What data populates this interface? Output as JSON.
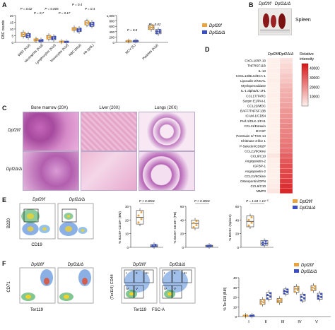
{
  "panels": {
    "a": "A",
    "b": "B",
    "c": "C",
    "d": "D",
    "e": "E",
    "f": "F"
  },
  "colors": {
    "ctrl": "#e8a33d",
    "ko": "#3a4fc4",
    "heat_high": "#d7191c",
    "heat_low": "#fde3e3"
  },
  "groups": {
    "ctrl": "Dpf2f/f",
    "ko": "Dpf2Δ/Δ"
  },
  "chart_data": [
    {
      "id": "A-left",
      "type": "box",
      "ylabel": "CBC counts",
      "categories": [
        "WBC (K/μl)",
        "Neutrophils (K/μl)",
        "Lymphocytes (K/μl)",
        "Monocytes (K/μl)",
        "RBC (M/μl)",
        "Hb (g/dL)"
      ],
      "yticks": [
        "0",
        "5",
        "10",
        "15",
        "20"
      ],
      "ylim": [
        0,
        20
      ],
      "ctrl_boxes": [
        [
          4.5,
          6,
          7.5
        ],
        [
          1.2,
          1.8,
          2.6
        ],
        [
          2.5,
          4,
          5.2
        ],
        [
          0.3,
          0.5,
          0.8
        ],
        [
          9,
          10,
          11
        ],
        [
          13,
          14.5,
          16
        ]
      ],
      "ko_boxes": [
        [
          3.5,
          5,
          6.5
        ],
        [
          0.8,
          1.3,
          1.9
        ],
        [
          2,
          3.2,
          4.5
        ],
        [
          0.2,
          0.4,
          0.6
        ],
        [
          8,
          9.5,
          10.5
        ],
        [
          12,
          13.5,
          15
        ]
      ],
      "pvalues": [
        "P = 0.02",
        "P = 0.7",
        "P = 0.005",
        "P = 0.17",
        "P = 0.4",
        "P = 0.4"
      ]
    },
    {
      "id": "A-right",
      "type": "box",
      "categories": [
        "MCV (fL)",
        "Platelets (K/μl)"
      ],
      "yticks": [
        "0",
        "200",
        "400",
        "600",
        "800",
        "1,000"
      ],
      "ylim": [
        0,
        1000
      ],
      "ctrl_boxes": [
        [
          40,
          50,
          60
        ],
        [
          480,
          560,
          640
        ]
      ],
      "ko_boxes": [
        [
          42,
          52,
          62
        ],
        [
          320,
          400,
          480
        ]
      ],
      "pvalues": [
        "P = 0.8",
        "P = 0.02"
      ]
    },
    {
      "id": "D",
      "type": "heatmap",
      "columns": [
        "Dpf2f/f",
        "Dpf2Δ/Δ"
      ],
      "rows": [
        "CXCL10/IP-10",
        "TNFRSF11B",
        "IL-13",
        "CXCL13/BLC/BCA-1",
        "Lipocalin-2/NGAL",
        "Myeloperoxidase",
        "IL-1 alpha/IL-1F1",
        "CCL17/TARC",
        "Serpin E1/PAI-1",
        "CCL22/MDC",
        "BAFF/TNFSF13B",
        "ICAM-1/CD54",
        "Pref-1/DLK-1/FA1",
        "CCL11/Eotaxin",
        "M CSF",
        "Pentraxin 3/ TSG-14",
        "Chitinase 3-like 1",
        "P-Selectin/CD62P",
        "CCL21/6Ckine",
        "CCL6/C10",
        "Angiopoietin-2",
        "IGFBP-1",
        "Angiopoietin-2",
        "CCL21/6Ckine",
        "Osteopontin/OPN",
        "CCL6/C10",
        "MMP3"
      ],
      "ctrl": [
        1000,
        800,
        1200,
        900,
        1500,
        1100,
        900,
        1300,
        1000,
        1200,
        800,
        900,
        1000,
        1100,
        1000,
        1200,
        1300,
        1000,
        1100,
        3000,
        1500,
        1300,
        1200,
        1000,
        1500,
        2000,
        3000
      ],
      "ko": [
        4000,
        6000,
        7000,
        9000,
        10000,
        12000,
        14000,
        15000,
        16000,
        17000,
        19000,
        20000,
        21000,
        22000,
        23000,
        24000,
        25000,
        26000,
        27000,
        30000,
        32000,
        34000,
        35000,
        36000,
        38000,
        40000,
        42000
      ],
      "legend_title": "Relative\nintensity",
      "legend_ticks": [
        "40000",
        "30000",
        "20000",
        "10000"
      ],
      "vmax": 45000
    },
    {
      "id": "E1",
      "type": "box",
      "ylabel": "% B220+ CD19+ (BM)",
      "yticks": [
        "0",
        "10",
        "20",
        "30"
      ],
      "ylim": [
        0,
        30
      ],
      "ctrl_box": [
        17,
        22,
        27
      ],
      "ko_box": [
        0.5,
        1,
        2
      ],
      "pvalue": "P < 0.0001"
    },
    {
      "id": "E2",
      "type": "box",
      "ylabel": "% B220+ CD19+ (PB)",
      "yticks": [
        "0",
        "20",
        "40",
        "60"
      ],
      "ylim": [
        0,
        60
      ],
      "ctrl_box": [
        28,
        35,
        40
      ],
      "ko_box": [
        1,
        2,
        3
      ],
      "pvalue": "P < 0.0001"
    },
    {
      "id": "E3",
      "type": "box",
      "ylabel": "% B220+ (Spleen)",
      "yticks": [
        "0",
        "20",
        "40",
        "60"
      ],
      "ylim": [
        0,
        60
      ],
      "ctrl_box": [
        30,
        38,
        46
      ],
      "ko_box": [
        3,
        6,
        10
      ],
      "pvalue": "P = 1.84 × 10⁻⁵"
    },
    {
      "id": "F",
      "type": "box",
      "ylabel": "% Ter119 (BM)",
      "categories": [
        "I",
        "II",
        "III",
        "IV",
        "V"
      ],
      "yticks": [
        "0",
        "10",
        "20",
        "30",
        "40"
      ],
      "ylim": [
        0,
        45
      ],
      "ctrl_boxes": [
        [
          0.5,
          1,
          1.5
        ],
        [
          14,
          17,
          20
        ],
        [
          16,
          18,
          21
        ],
        [
          28,
          32,
          35
        ],
        [
          30,
          33,
          36
        ]
      ],
      "ko_boxes": [
        [
          0.5,
          1,
          1.5
        ],
        [
          20,
          24,
          28
        ],
        [
          26,
          29,
          32
        ],
        [
          18,
          22,
          26
        ],
        [
          20,
          23,
          27
        ]
      ]
    }
  ],
  "panel_b": {
    "label": "Spleen",
    "genotypes": [
      "Dpf2f/f",
      "Dpf2Δ/Δ"
    ]
  },
  "panel_c": {
    "columns": [
      "Bone marrow (20X)",
      "Liver (20X)",
      "Lungs (20X)"
    ],
    "rows": [
      "Dpf2f/f",
      "Dpf2Δ/Δ"
    ]
  },
  "panel_e": {
    "x_axis": "CD19",
    "y_axis": "B220",
    "plots": [
      "Dpf2f/f",
      "Dpf2Δ/Δ"
    ]
  },
  "panel_f": {
    "x1": "Ter119",
    "y1": "CD71",
    "x2": "FSC-A",
    "y2": "(Ter119) CD44",
    "plots": [
      "Dpf2f/f",
      "Dpf2Δ/Δ"
    ],
    "gates": [
      "I",
      "II",
      "III",
      "IV",
      "V"
    ]
  }
}
